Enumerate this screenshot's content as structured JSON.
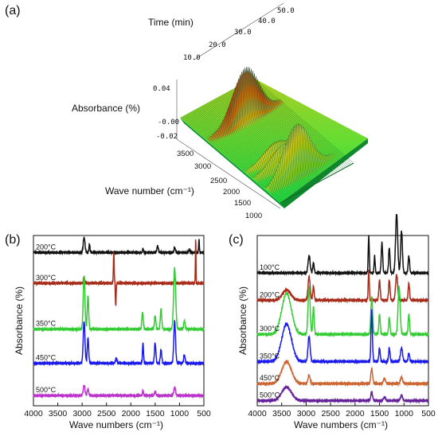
{
  "panels": {
    "a": {
      "panel_label": "(a)",
      "time_axis_label": "Time (min)",
      "time_ticks": [
        "10.0",
        "20.0",
        "30.0",
        "40.0",
        "50.0"
      ],
      "absorbance_label": "Absorbance (%)",
      "absorbance_ticks": [
        "0.04",
        "-0.00",
        "-0.02"
      ],
      "wave_axis_label": "Wave number (cm⁻¹)",
      "wave_ticks": [
        "3500",
        "3000",
        "2500",
        "2000",
        "1500",
        "1000"
      ]
    },
    "b": {
      "panel_label": "(b)",
      "ylabel": "Absorbance (%)",
      "xlabel": "Wave numbers (cm⁻¹)",
      "xticks": [
        "4000",
        "3500",
        "3000",
        "2500",
        "2000",
        "1500",
        "1000",
        "500"
      ]
    },
    "c": {
      "panel_label": "(c)",
      "ylabel": "Absorbance (%)",
      "xlabel": "Wave numbers (cm⁻¹)",
      "xticks": [
        "4000",
        "3500",
        "3000",
        "2500",
        "2000",
        "1500",
        "1000",
        "500"
      ]
    }
  },
  "chart_data": [
    {
      "panel": "a",
      "type": "surface",
      "x_axis": "Wave number (cm⁻¹)",
      "x_range": [
        3800,
        700
      ],
      "y_axis": "Time (min)",
      "y_range": [
        0,
        55
      ],
      "z_axis": "Absorbance (%)",
      "z_range": [
        -0.02,
        0.06
      ],
      "colors": {
        "low": "#22dd44",
        "mid": "#99cc22",
        "high": "#aa3311"
      },
      "peaks": [
        {
          "wavenumber": 2930,
          "time": 28,
          "absorbance": 0.05
        },
        {
          "wavenumber": 1750,
          "time": 22,
          "absorbance": 0.015
        },
        {
          "wavenumber": 1500,
          "time": 22,
          "absorbance": 0.02
        },
        {
          "wavenumber": 1100,
          "time": 22,
          "absorbance": 0.05
        }
      ]
    },
    {
      "panel": "b",
      "type": "line",
      "xlim": [
        4000,
        500
      ],
      "series": [
        {
          "name": "200°C",
          "color": "#111111",
          "baseline": 0.9,
          "peaks": [
            [
              2960,
              0.09,
              25
            ],
            [
              2850,
              0.05,
              15
            ],
            [
              1750,
              0.02,
              15
            ],
            [
              1450,
              0.04,
              20
            ],
            [
              1100,
              0.03,
              20
            ],
            [
              800,
              0.02,
              15
            ],
            [
              600,
              0.08,
              10
            ]
          ]
        },
        {
          "name": "300°C",
          "color": "#a82a18",
          "baseline": 0.72,
          "peaks": [
            [
              2960,
              0.03,
              20
            ],
            [
              2350,
              0.18,
              12
            ],
            [
              2310,
              -0.14,
              10
            ],
            [
              1100,
              0.03,
              20
            ],
            [
              668,
              0.28,
              8
            ]
          ]
        },
        {
          "name": "350°C",
          "color": "#33cc33",
          "baseline": 0.45,
          "peaks": [
            [
              2960,
              0.32,
              25
            ],
            [
              2880,
              0.2,
              20
            ],
            [
              1760,
              0.1,
              20
            ],
            [
              1500,
              0.08,
              20
            ],
            [
              1380,
              0.12,
              20
            ],
            [
              1100,
              0.36,
              30
            ],
            [
              900,
              0.05,
              20
            ]
          ]
        },
        {
          "name": "450°C",
          "color": "#1a1aee",
          "baseline": 0.25,
          "peaks": [
            [
              2960,
              0.25,
              25
            ],
            [
              2880,
              0.15,
              20
            ],
            [
              2300,
              0.03,
              20
            ],
            [
              1750,
              0.12,
              15
            ],
            [
              1500,
              0.12,
              20
            ],
            [
              1380,
              0.08,
              20
            ],
            [
              1100,
              0.25,
              25
            ],
            [
              900,
              0.05,
              20
            ]
          ]
        },
        {
          "name": "500°C",
          "color": "#bb33cc",
          "baseline": 0.06,
          "peaks": [
            [
              2960,
              0.06,
              25
            ],
            [
              2880,
              0.04,
              20
            ],
            [
              1750,
              0.03,
              15
            ],
            [
              1500,
              0.02,
              20
            ],
            [
              1100,
              0.05,
              25
            ]
          ]
        }
      ]
    },
    {
      "panel": "c",
      "type": "line",
      "xlim": [
        4000,
        500
      ],
      "series": [
        {
          "name": "100°C",
          "color": "#111111",
          "baseline": 0.78,
          "peaks": [
            [
              2940,
              0.1,
              30
            ],
            [
              2850,
              0.06,
              20
            ],
            [
              1720,
              0.22,
              15
            ],
            [
              1600,
              0.1,
              15
            ],
            [
              1450,
              0.18,
              20
            ],
            [
              1300,
              0.15,
              20
            ],
            [
              1150,
              0.35,
              30
            ],
            [
              1050,
              0.25,
              25
            ],
            [
              900,
              0.1,
              20
            ]
          ]
        },
        {
          "name": "200°C",
          "color": "#a82a18",
          "baseline": 0.62,
          "peaks": [
            [
              3400,
              0.06,
              120
            ],
            [
              2940,
              0.14,
              30
            ],
            [
              2850,
              0.08,
              20
            ],
            [
              1720,
              0.18,
              15
            ],
            [
              1500,
              0.12,
              20
            ],
            [
              1300,
              0.12,
              20
            ],
            [
              1150,
              0.15,
              30
            ],
            [
              900,
              0.1,
              20
            ]
          ]
        },
        {
          "name": "300°C",
          "color": "#33cc33",
          "baseline": 0.42,
          "peaks": [
            [
              3400,
              0.24,
              140
            ],
            [
              2940,
              0.28,
              30
            ],
            [
              2850,
              0.16,
              20
            ],
            [
              1660,
              0.22,
              25
            ],
            [
              1500,
              0.12,
              20
            ],
            [
              1300,
              0.1,
              20
            ],
            [
              1100,
              0.28,
              30
            ],
            [
              900,
              0.12,
              20
            ]
          ]
        },
        {
          "name": "350°C",
          "color": "#1a1aee",
          "baseline": 0.26,
          "peaks": [
            [
              3400,
              0.22,
              140
            ],
            [
              2940,
              0.15,
              30
            ],
            [
              1660,
              0.3,
              20
            ],
            [
              1500,
              0.08,
              20
            ],
            [
              1300,
              0.08,
              20
            ],
            [
              1050,
              0.08,
              30
            ],
            [
              900,
              0.05,
              20
            ]
          ]
        },
        {
          "name": "450°C",
          "color": "#cc6633",
          "baseline": 0.13,
          "peaks": [
            [
              3400,
              0.13,
              140
            ],
            [
              2940,
              0.05,
              30
            ],
            [
              1660,
              0.09,
              25
            ],
            [
              1400,
              0.03,
              30
            ],
            [
              1050,
              0.04,
              30
            ]
          ]
        },
        {
          "name": "500°C",
          "color": "#662299",
          "baseline": 0.03,
          "peaks": [
            [
              3400,
              0.08,
              140
            ],
            [
              1660,
              0.05,
              25
            ],
            [
              1400,
              0.02,
              30
            ],
            [
              1050,
              0.03,
              30
            ]
          ]
        }
      ]
    }
  ]
}
